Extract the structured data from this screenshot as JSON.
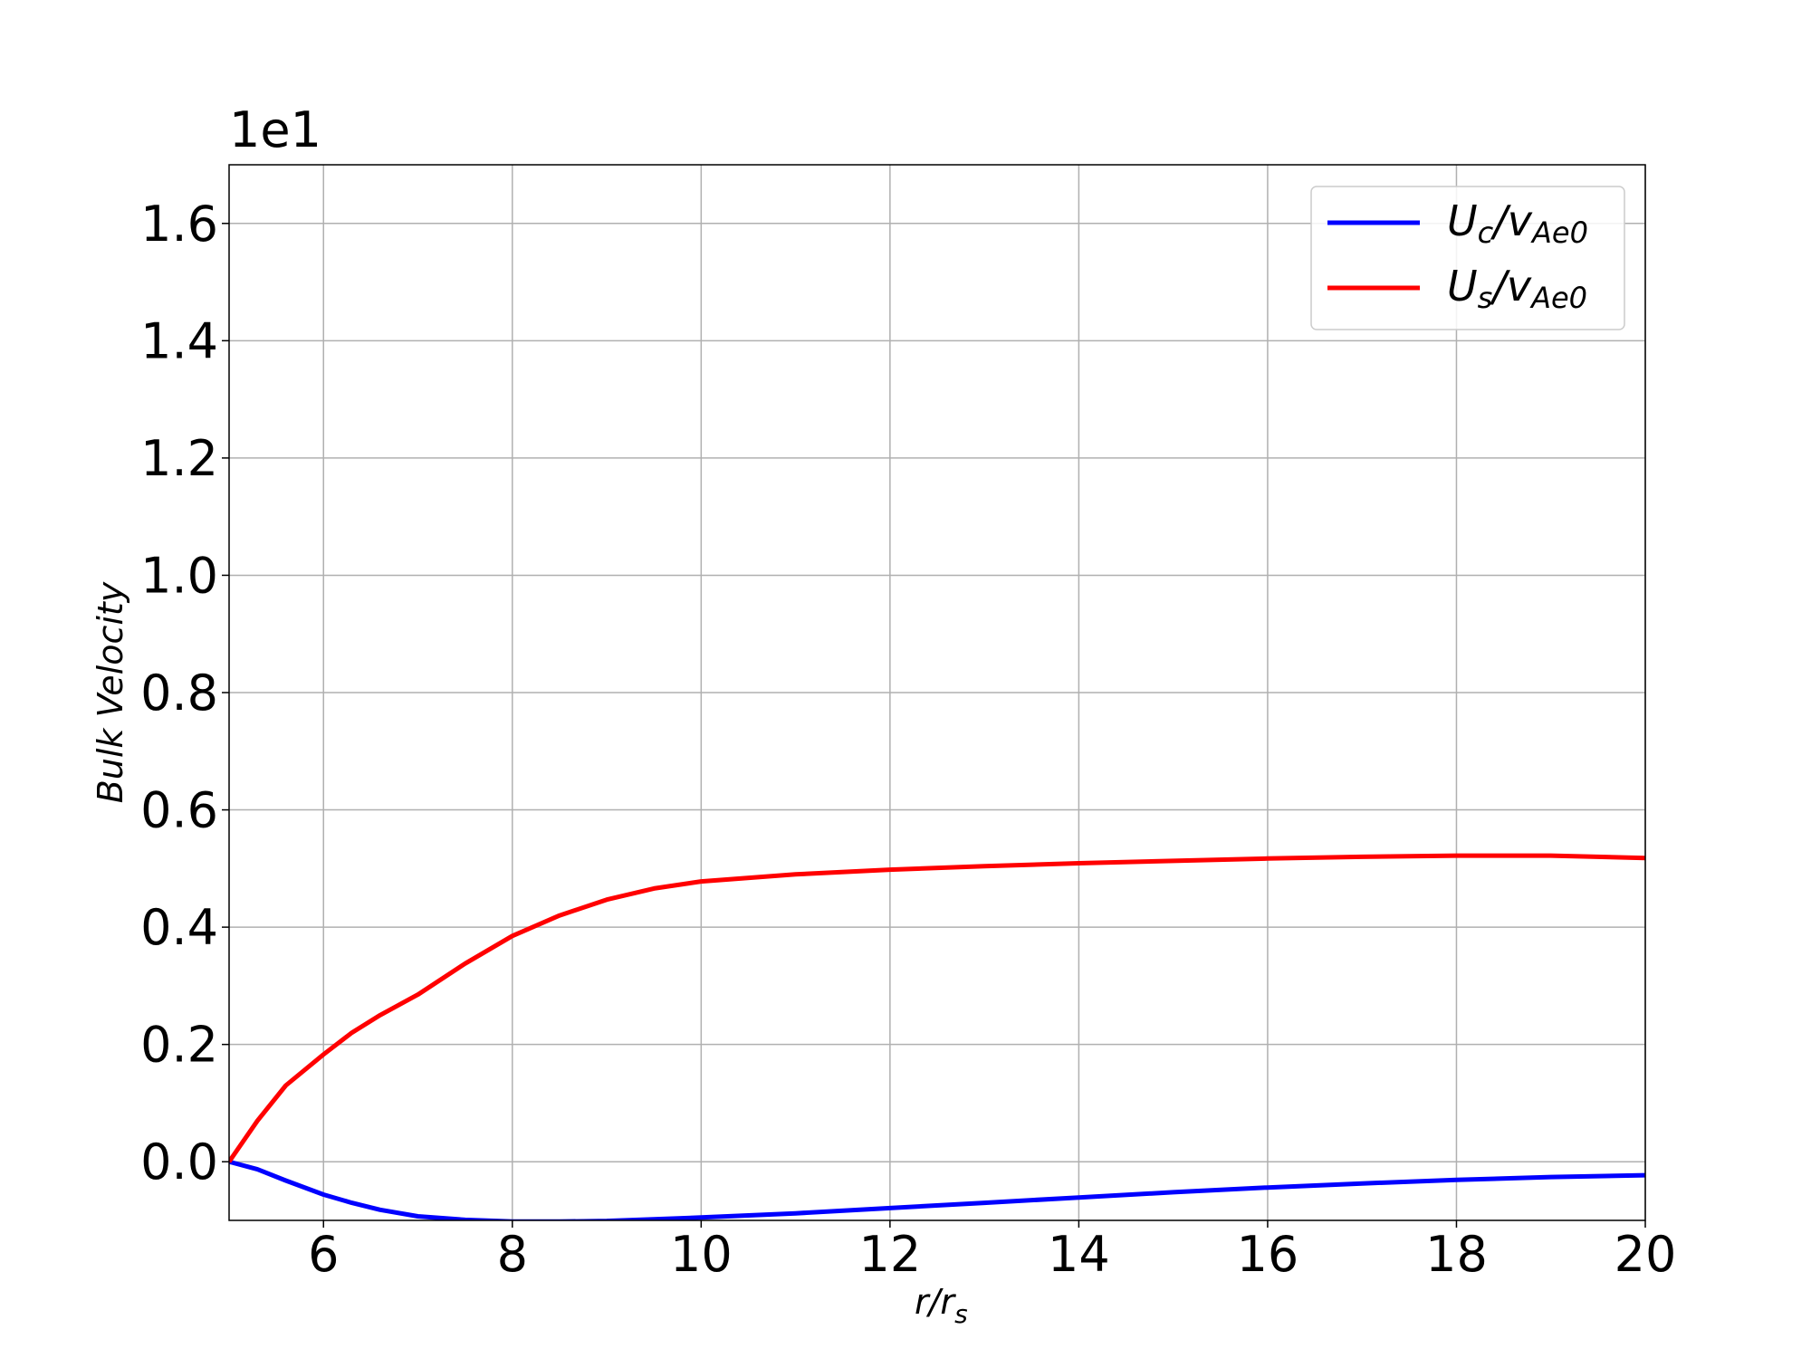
{
  "chart_data": {
    "type": "line",
    "title": "",
    "xlabel": {
      "main": "r",
      "sub": "s",
      "sep": "/r"
    },
    "ylabel": "Bulk Velocity",
    "offset_label": "1e1",
    "xlim": [
      5,
      20
    ],
    "ylim": [
      -0.1,
      1.7
    ],
    "x_ticks": [
      "6",
      "8",
      "10",
      "12",
      "14",
      "16",
      "18",
      "20"
    ],
    "y_ticks": [
      "0.0",
      "0.2",
      "0.4",
      "0.6",
      "0.8",
      "1.0",
      "1.2",
      "1.4",
      "1.6"
    ],
    "grid": true,
    "legend_position": "top-right",
    "x": [
      5.0,
      5.3,
      5.6,
      6.0,
      6.3,
      6.6,
      7.0,
      7.5,
      8.0,
      8.5,
      9.0,
      9.5,
      10.0,
      11.0,
      12.0,
      13.0,
      14.0,
      15.0,
      16.0,
      17.0,
      18.0,
      19.0,
      20.0
    ],
    "series": [
      {
        "name": "U_c/v_Ae0",
        "color": "#0000ff",
        "legend": {
          "main": "U",
          "sub1": "c",
          "mid": "/v",
          "sub2": "Ae0"
        },
        "values": [
          0.0,
          -0.013,
          -0.032,
          -0.056,
          -0.07,
          -0.082,
          -0.093,
          -0.099,
          -0.102,
          -0.102,
          -0.101,
          -0.098,
          -0.095,
          -0.088,
          -0.079,
          -0.07,
          -0.061,
          -0.052,
          -0.044,
          -0.037,
          -0.031,
          -0.026,
          -0.023
        ]
      },
      {
        "name": "U_s/v_Ae0",
        "color": "#ff0000",
        "legend": {
          "main": "U",
          "sub1": "s",
          "mid": "/v",
          "sub2": "Ae0"
        },
        "values": [
          0.0,
          0.07,
          0.13,
          0.183,
          0.22,
          0.25,
          0.285,
          0.338,
          0.385,
          0.42,
          0.447,
          0.466,
          0.478,
          0.49,
          0.498,
          0.504,
          0.509,
          0.513,
          0.517,
          0.52,
          0.522,
          0.522,
          0.518
        ]
      }
    ]
  }
}
